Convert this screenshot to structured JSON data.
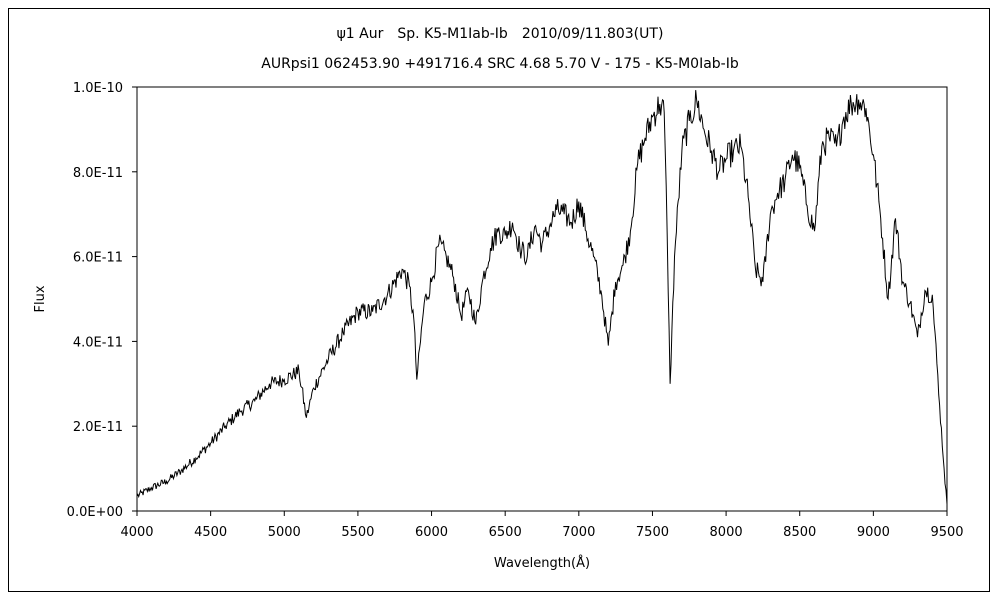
{
  "chart_data": {
    "type": "line",
    "title": "ψ1 Aur　Sp. K5-M1Iab-Ib　2010/09/11.803(UT)",
    "subtitle": "AURpsi1 062453.90 +491716.4 SRC 4.68 5.70 V - 175 - K5-M0Iab-Ib",
    "xlabel": "Wavelength(Å)",
    "ylabel": "Flux",
    "xlim": [
      4000,
      9500
    ],
    "ylim": [
      0,
      1e-10
    ],
    "x_ticks": [
      4000,
      4500,
      5000,
      5500,
      6000,
      6500,
      7000,
      7500,
      8000,
      8500,
      9000,
      9500
    ],
    "x_tick_labels": [
      "4000",
      "4500",
      "5000",
      "5500",
      "6000",
      "6500",
      "7000",
      "7500",
      "8000",
      "8500",
      "9000",
      "9500"
    ],
    "y_ticks": [
      0,
      2e-11,
      4e-11,
      6e-11,
      8e-11,
      1e-10
    ],
    "y_tick_labels": [
      "0.0E+00",
      "2.0E-11",
      "4.0E-11",
      "6.0E-11",
      "8.0E-11",
      "1.0E-10"
    ],
    "grid": false,
    "legend": "none",
    "series": [
      {
        "color": "#000000",
        "x": [
          4000,
          4100,
          4200,
          4300,
          4400,
          4500,
          4600,
          4700,
          4800,
          4900,
          5000,
          5100,
          5150,
          5200,
          5300,
          5400,
          5500,
          5600,
          5700,
          5800,
          5850,
          5880,
          5900,
          5950,
          6000,
          6050,
          6100,
          6150,
          6200,
          6250,
          6300,
          6350,
          6400,
          6450,
          6500,
          6550,
          6600,
          6650,
          6700,
          6750,
          6800,
          6850,
          6900,
          6950,
          7000,
          7050,
          7100,
          7150,
          7200,
          7250,
          7300,
          7350,
          7400,
          7450,
          7500,
          7550,
          7580,
          7600,
          7620,
          7650,
          7700,
          7750,
          7800,
          7850,
          7900,
          7950,
          8000,
          8050,
          8100,
          8150,
          8200,
          8250,
          8300,
          8350,
          8400,
          8450,
          8500,
          8550,
          8600,
          8650,
          8700,
          8750,
          8800,
          8850,
          8900,
          8950,
          9000,
          9050,
          9100,
          9150,
          9200,
          9250,
          9300,
          9350,
          9400,
          9450,
          9480,
          9500
        ],
        "values": [
          3.5e-12,
          5.5e-12,
          7e-12,
          9.5e-12,
          1.25e-11,
          1.6e-11,
          2e-11,
          2.35e-11,
          2.6e-11,
          3e-11,
          3.1e-11,
          3.3e-11,
          2.2e-11,
          2.9e-11,
          3.6e-11,
          4.2e-11,
          4.7e-11,
          4.7e-11,
          5.1e-11,
          5.7e-11,
          5.3e-11,
          4.5e-11,
          3.1e-11,
          4.9e-11,
          5.4e-11,
          6.3e-11,
          6e-11,
          5.5e-11,
          4.6e-11,
          5.2e-11,
          4.4e-11,
          5.5e-11,
          6.2e-11,
          6.6e-11,
          6.5e-11,
          6.8e-11,
          6.2e-11,
          6e-11,
          6.7e-11,
          6.3e-11,
          6.7e-11,
          7.1e-11,
          7e-11,
          6.8e-11,
          7.3e-11,
          6.6e-11,
          6e-11,
          5.2e-11,
          3.9e-11,
          5.4e-11,
          5.8e-11,
          6.6e-11,
          8.2e-11,
          8.8e-11,
          9.3e-11,
          9.6e-11,
          9.4e-11,
          6.5e-11,
          3e-11,
          6e-11,
          8.5e-11,
          9.2e-11,
          9.7e-11,
          9e-11,
          8.5e-11,
          8e-11,
          8.3e-11,
          8.5e-11,
          8.6e-11,
          7.4e-11,
          5.7e-11,
          5.4e-11,
          7e-11,
          7.5e-11,
          7.8e-11,
          8.4e-11,
          8.1e-11,
          7.2e-11,
          6.6e-11,
          8.6e-11,
          8.8e-11,
          8.6e-11,
          9.3e-11,
          9.6e-11,
          9.7e-11,
          9.5e-11,
          8.4e-11,
          6.9e-11,
          5e-11,
          6.9e-11,
          5.4e-11,
          4.9e-11,
          4.1e-11,
          5.2e-11,
          5.1e-11,
          2.5e-11,
          1e-11,
          1.6e-12
        ]
      }
    ]
  }
}
